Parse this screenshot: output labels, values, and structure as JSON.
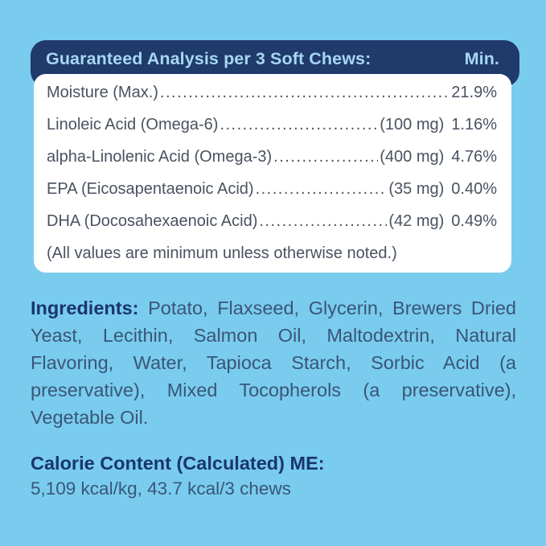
{
  "label": {
    "analysis": {
      "title": "Guaranteed Analysis per 3 Soft Chews:",
      "min_header": "Min.",
      "rows": [
        {
          "name": "Moisture (Max.)",
          "amount": "",
          "min": "21.9%"
        },
        {
          "name": "Linoleic Acid (Omega-6)",
          "amount": "(100 mg)",
          "min": "1.16%"
        },
        {
          "name": "alpha-Linolenic Acid (Omega-3)",
          "amount": "(400 mg)",
          "min": "4.76%"
        },
        {
          "name": "EPA (Eicosapentaenoic Acid)",
          "amount": "(35 mg)",
          "min": "0.40%"
        },
        {
          "name": "DHA (Docosahexaenoic Acid)",
          "amount": "(42 mg)",
          "min": "0.49%"
        }
      ],
      "footnote": "(All values are minimum unless otherwise noted.)"
    },
    "ingredients": {
      "label": "Ingredients:",
      "text": "Potato, Flaxseed, Glycerin, Brewers Dried Yeast, Lecithin, Salmon Oil, Maltodextrin, Natural Flavoring, Water, Tapioca Starch, Sorbic Acid (a preservative), Mixed Tocopherols (a preservative), Vegetable Oil."
    },
    "calorie_content": {
      "label": "Calorie Content (Calculated) ME:",
      "text": "5,109 kcal/kg, 43.7 kcal/3 chews"
    },
    "colors": {
      "background": "#79CCEE",
      "header_bg": "#203A6B",
      "header_text": "#A7D7F3",
      "card_bg": "#FFFFFF",
      "row_text": "#4A5260",
      "body_text": "#3A5577",
      "bold_heading_text": "#1A366B"
    }
  }
}
